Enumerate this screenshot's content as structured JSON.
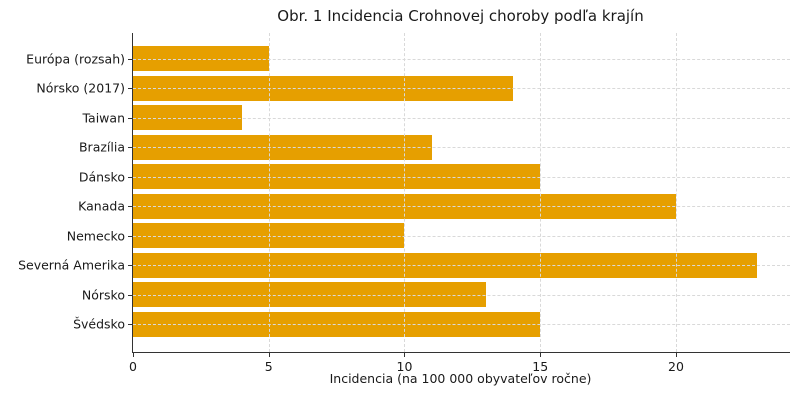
{
  "chart_data": {
    "type": "bar",
    "orientation": "horizontal",
    "title": "Obr. 1 Incidencia Crohnovej choroby podľa krajín",
    "xlabel": "Incidencia (na 100 000 obyvateľov ročne)",
    "ylabel": "",
    "categories": [
      "Európa (rozsah)",
      "Nórsko (2017)",
      "Taiwan",
      "Brazília",
      "Dánsko",
      "Kanada",
      "Nemecko",
      "Severná Amerika",
      "Nórsko",
      "Švédsko"
    ],
    "values": [
      5,
      14,
      4,
      11,
      15,
      20,
      10,
      23,
      13,
      15
    ],
    "xlim": [
      0,
      24.2
    ],
    "xticks": [
      0,
      5,
      10,
      15,
      20
    ],
    "grid": true,
    "legend": "none",
    "bar_color": "#E69F00",
    "axis_color": "#333333",
    "grid_color": "#d9d9d9",
    "text_color": "#1a1a1a",
    "background_color": "#ffffff"
  }
}
